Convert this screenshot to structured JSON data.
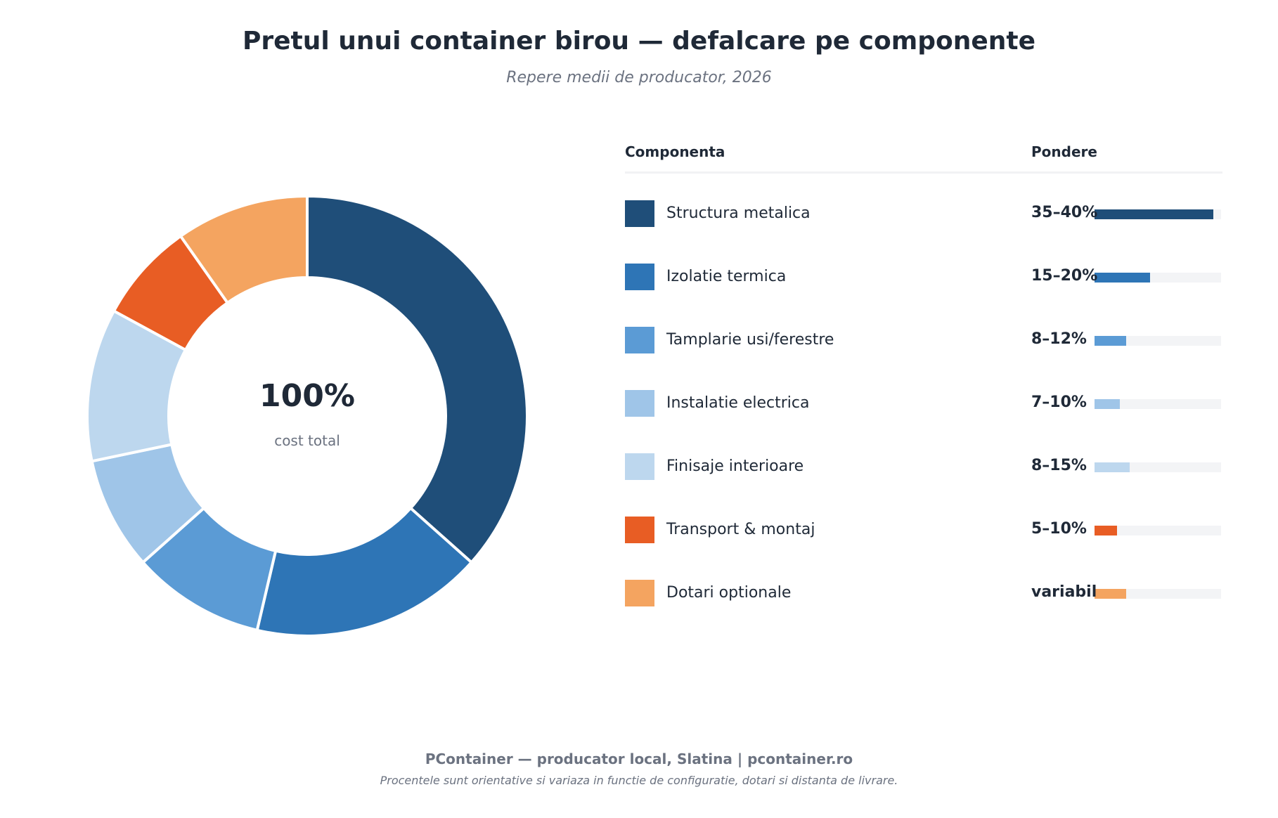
{
  "title": "Pretul unui container birou — defalcare pe componente",
  "subtitle": "Repere medii de producator, 2026",
  "center": {
    "value": "100%",
    "label": "cost total"
  },
  "legend": {
    "col_component": "Componenta",
    "col_weight": "Pondere"
  },
  "chart_data": {
    "type": "pie",
    "title": "Pretul unui container birou — defalcare pe componente",
    "subtitle": "Repere medii de producator, 2026",
    "center_label": "100%",
    "center_sublabel": "cost total",
    "slices": [
      {
        "name": "Structura metalica",
        "range": "35–40%",
        "share": 37.5,
        "bar_value": 37.5,
        "color": "#1f4e79"
      },
      {
        "name": "Izolatie termica",
        "range": "15–20%",
        "share": 17.5,
        "bar_value": 17.5,
        "color": "#2e75b6"
      },
      {
        "name": "Tamplarie usi/ferestre",
        "range": "8–12%",
        "share": 10,
        "bar_value": 10,
        "color": "#5b9bd5"
      },
      {
        "name": "Instalatie electrica",
        "range": "7–10%",
        "share": 8.5,
        "bar_value": 8,
        "color": "#9fc5e8"
      },
      {
        "name": "Finisaje interioare",
        "range": "8–15%",
        "share": 11.5,
        "bar_value": 11,
        "color": "#bdd7ee"
      },
      {
        "name": "Transport & montaj",
        "range": "5–10%",
        "share": 7.5,
        "bar_value": 7,
        "color": "#e85d24"
      },
      {
        "name": "Dotari optionale",
        "range": "variabil",
        "share": 10,
        "bar_value": 10,
        "color": "#f4a460"
      }
    ],
    "bar_max": 40,
    "legend_position": "right"
  },
  "footer": {
    "line1": "PContainer — producator local, Slatina  |  pcontainer.ro",
    "line2": "Procentele sunt orientative si variaza in functie de configuratie, dotari si distanta de livrare."
  }
}
